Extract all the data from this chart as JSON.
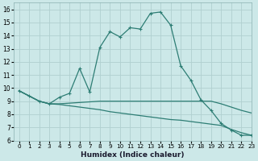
{
  "xlabel": "Humidex (Indice chaleur)",
  "background_color": "#cce8e8",
  "line_color": "#2d7d74",
  "grid_color": "#b0d0d0",
  "xlim": [
    -0.5,
    23
  ],
  "ylim": [
    6,
    16.5
  ],
  "xticks": [
    0,
    1,
    2,
    3,
    4,
    5,
    6,
    7,
    8,
    9,
    10,
    11,
    12,
    13,
    14,
    15,
    16,
    17,
    18,
    19,
    20,
    21,
    22,
    23
  ],
  "yticks": [
    6,
    7,
    8,
    9,
    10,
    11,
    12,
    13,
    14,
    15,
    16
  ],
  "line1_x": [
    0,
    1,
    2,
    3,
    4,
    5,
    6,
    7,
    8,
    9,
    10,
    11,
    12,
    13,
    14,
    15,
    16,
    17,
    18,
    19,
    20,
    21,
    22,
    23
  ],
  "line1_y": [
    9.8,
    9.4,
    9.0,
    8.8,
    9.3,
    9.6,
    11.5,
    9.7,
    13.1,
    14.3,
    13.9,
    14.6,
    14.5,
    15.7,
    15.8,
    14.8,
    11.7,
    10.6,
    9.1,
    8.3,
    7.3,
    6.8,
    6.4,
    6.4
  ],
  "line2_x": [
    0,
    1,
    2,
    3,
    4,
    5,
    6,
    7,
    8,
    9,
    10,
    11,
    12,
    13,
    14,
    15,
    16,
    17,
    18,
    19,
    20,
    21,
    22,
    23
  ],
  "line2_y": [
    9.8,
    9.4,
    9.0,
    8.8,
    8.8,
    8.85,
    8.9,
    8.95,
    9.0,
    9.0,
    9.0,
    9.0,
    9.0,
    9.0,
    9.0,
    9.0,
    9.0,
    9.0,
    9.0,
    9.0,
    8.8,
    8.55,
    8.3,
    8.1
  ],
  "line3_x": [
    0,
    1,
    2,
    3,
    4,
    5,
    6,
    7,
    8,
    9,
    10,
    11,
    12,
    13,
    14,
    15,
    16,
    17,
    18,
    19,
    20,
    21,
    22,
    23
  ],
  "line3_y": [
    9.8,
    9.4,
    9.0,
    8.8,
    8.75,
    8.65,
    8.55,
    8.45,
    8.35,
    8.2,
    8.1,
    8.0,
    7.9,
    7.8,
    7.7,
    7.6,
    7.55,
    7.45,
    7.35,
    7.25,
    7.15,
    6.85,
    6.6,
    6.4
  ]
}
